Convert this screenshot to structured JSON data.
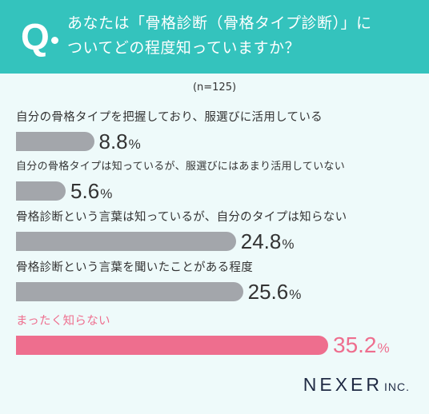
{
  "header": {
    "q_mark": "Q",
    "question_line1": "あなたは「骨格診断（骨格タイプ診断）」に",
    "question_line2": "ついてどの程度知っていますか？"
  },
  "sample_note": "(n=125)",
  "colors": {
    "header_bg": "#34c3bd",
    "page_bg": "#eefafa",
    "bar_default": "#a3a6ab",
    "bar_highlight": "#ee6e8e",
    "logo": "#1f2a44"
  },
  "chart_data": {
    "type": "bar",
    "orientation": "horizontal",
    "unit": "%",
    "categories": [
      "自分の骨格タイプを把握しており、服選びに活用している",
      "自分の骨格タイプは知っているが、服選びにはあまり活用していない",
      "骨格診断という言葉は知っているが、自分のタイプは知らない",
      "骨格診断という言葉を聞いたことがある程度",
      "まったく知らない"
    ],
    "values": [
      8.8,
      5.6,
      24.8,
      25.6,
      35.2
    ],
    "value_labels": [
      "8.8",
      "5.6",
      "24.8",
      "25.6",
      "35.2"
    ],
    "highlight_index": 4,
    "xlim": [
      0,
      35.2
    ],
    "grid": false,
    "legend": "none"
  },
  "logo": {
    "brand": "NEXER",
    "suffix": "INC."
  }
}
